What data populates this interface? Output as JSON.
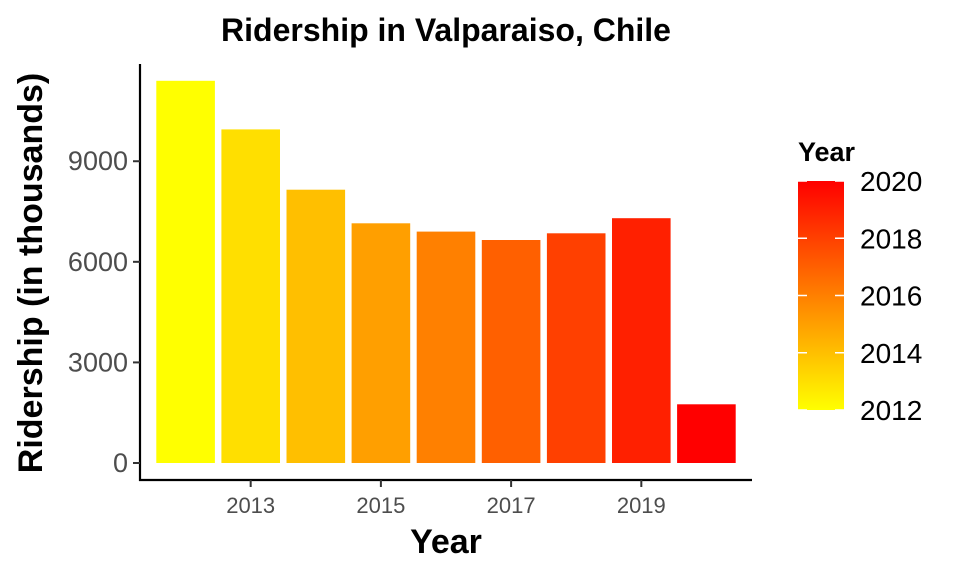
{
  "chart_data": {
    "type": "bar",
    "title": "Ridership in Valparaiso, Chile",
    "xlabel": "Year",
    "ylabel": "Ridership (in thousands)",
    "categories": [
      2012,
      2013,
      2014,
      2015,
      2016,
      2017,
      2018,
      2019,
      2020
    ],
    "values": [
      11400,
      9950,
      8150,
      7150,
      6900,
      6650,
      6850,
      7300,
      1750
    ],
    "ylim": [
      0,
      11900
    ],
    "xlim": [
      2011.3,
      2020.7
    ],
    "yticks": [
      0,
      3000,
      6000,
      9000
    ],
    "ytick_labels": [
      "0",
      "3000",
      "6000",
      "9000"
    ],
    "xticks": [
      2013,
      2015,
      2017,
      2019
    ],
    "xtick_labels": [
      "2013",
      "2015",
      "2017",
      "2019"
    ],
    "grid": false,
    "legend": {
      "title": "Year",
      "placement": "right",
      "labels": [
        "2020",
        "2018",
        "2016",
        "2014",
        "2012"
      ],
      "values": [
        2020,
        2018,
        2016,
        2014,
        2012
      ],
      "range": [
        2012,
        2020
      ],
      "color_low": "#FFFF00",
      "color_high": "#FF0000"
    }
  }
}
